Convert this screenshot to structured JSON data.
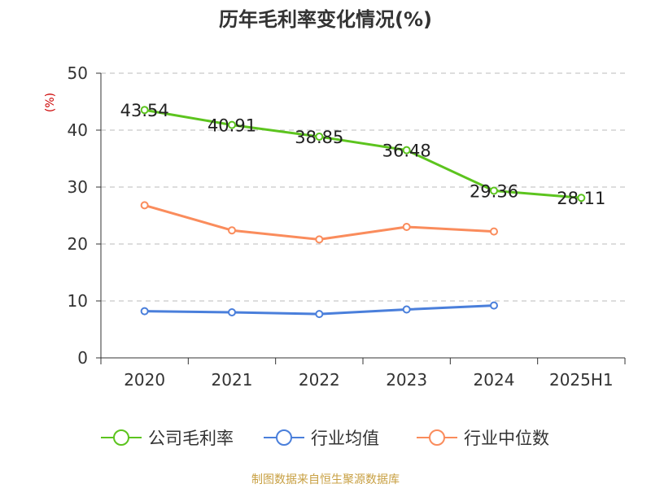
{
  "title": "历年毛利率变化情况(%)",
  "source_note": "制图数据来自恒生聚源数据库",
  "colors": {
    "gross_margin": "#5cc41e",
    "industry_avg": "#4a7fdb",
    "industry_median": "#fa8c5c",
    "grid": "#bbbbbb",
    "axis": "#333333"
  },
  "chart_data": {
    "type": "line",
    "title": "历年毛利率变化情况(%)",
    "ylabel": "(%)",
    "xlabel": "",
    "categories": [
      "2020",
      "2021",
      "2022",
      "2023",
      "2024",
      "2025H1"
    ],
    "ylim": [
      0,
      50
    ],
    "yticks": [
      0,
      10,
      20,
      30,
      40,
      50
    ],
    "grid": true,
    "legend_position": "bottom",
    "series": [
      {
        "name": "公司毛利率",
        "color_key": "gross_margin",
        "values": [
          43.54,
          40.91,
          38.85,
          36.48,
          29.36,
          28.11
        ],
        "labels": [
          "43.54",
          "40.91",
          "38.85",
          "36.48",
          "29.36",
          "28.11"
        ]
      },
      {
        "name": "行业均值",
        "color_key": "industry_avg",
        "values": [
          8.2,
          8.0,
          7.7,
          8.5,
          9.2,
          null
        ]
      },
      {
        "name": "行业中位数",
        "color_key": "industry_median",
        "values": [
          26.8,
          22.4,
          20.8,
          23.0,
          22.2,
          null
        ]
      }
    ]
  }
}
